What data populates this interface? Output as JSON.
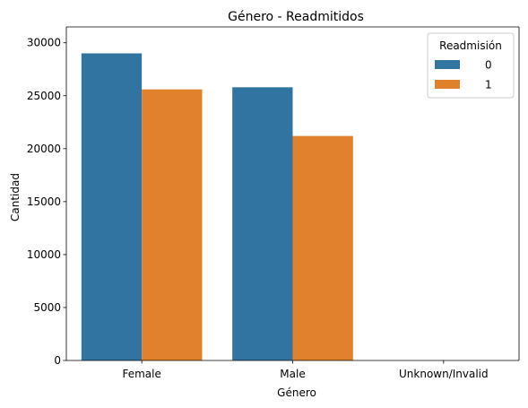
{
  "chart_data": {
    "type": "bar",
    "title": "Género - Readmitidos",
    "xlabel": "Género",
    "ylabel": "Cantidad",
    "categories": [
      "Female",
      "Male",
      "Unknown/Invalid"
    ],
    "series": [
      {
        "name": "0",
        "values": [
          29000,
          25800,
          0
        ],
        "color": "#3274a1"
      },
      {
        "name": "1",
        "values": [
          25600,
          21200,
          0
        ],
        "color": "#e1812c"
      }
    ],
    "ylim": [
      0,
      31500
    ],
    "yticks": [
      0,
      5000,
      10000,
      15000,
      20000,
      25000,
      30000
    ],
    "legend": {
      "title": "Readmisión",
      "position": "top-right"
    },
    "grid": false
  }
}
